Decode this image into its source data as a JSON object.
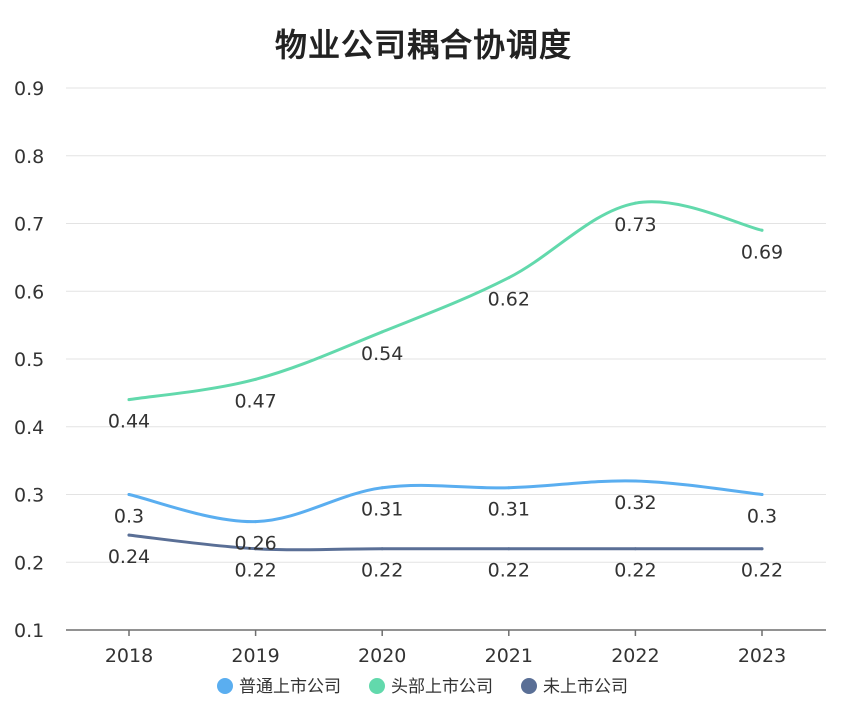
{
  "chart_data": {
    "type": "line",
    "title": "物业公司耦合协调度",
    "xlabel": "",
    "ylabel": "",
    "categories": [
      "2018",
      "2019",
      "2020",
      "2021",
      "2022",
      "2023"
    ],
    "ylim": [
      0.1,
      0.9
    ],
    "yticks": [
      "0.1",
      "0.2",
      "0.3",
      "0.4",
      "0.5",
      "0.6",
      "0.7",
      "0.8",
      "0.9"
    ],
    "grid": true,
    "legend_position": "bottom",
    "smooth": true,
    "series": [
      {
        "name": "普通上市公司",
        "color": "#5aaef0",
        "values": [
          0.3,
          0.26,
          0.31,
          0.31,
          0.32,
          0.3
        ]
      },
      {
        "name": "头部上市公司",
        "color": "#62d9ac",
        "values": [
          0.44,
          0.47,
          0.54,
          0.62,
          0.73,
          0.69
        ]
      },
      {
        "name": "未上市公司",
        "color": "#5a6f96",
        "values": [
          0.24,
          0.22,
          0.22,
          0.22,
          0.22,
          0.22
        ]
      }
    ]
  }
}
